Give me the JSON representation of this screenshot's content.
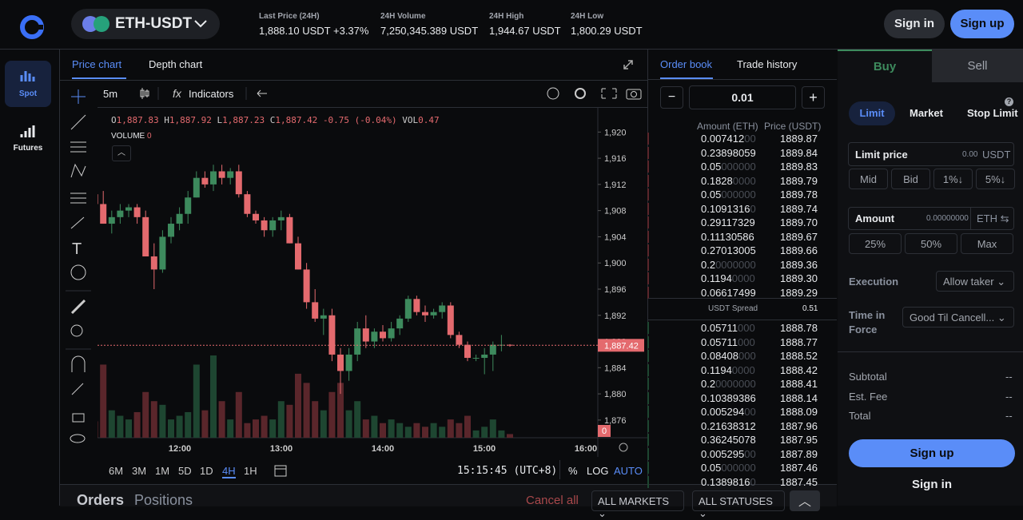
{
  "header": {
    "pair": "ETH-USDT",
    "stats": [
      {
        "label": "Last Price (24H)",
        "value": "1,888.10 USDT",
        "change": "+3.37%"
      },
      {
        "label": "24H Volume",
        "value": "7,250,345.389 USDT"
      },
      {
        "label": "24H High",
        "value": "1,944.67 USDT"
      },
      {
        "label": "24H Low",
        "value": "1,800.29 USDT"
      }
    ],
    "sign_in": "Sign in",
    "sign_up": "Sign up"
  },
  "sidebar": [
    "Spot",
    "Futures"
  ],
  "chart_tabs": [
    "Price chart",
    "Depth chart"
  ],
  "toolbar": {
    "interval": "5m",
    "indicators": "Indicators"
  },
  "ohlc": {
    "items": [
      {
        "k": "O",
        "v": "1,887.83"
      },
      {
        "k": "H",
        "v": "1,887.92"
      },
      {
        "k": "L",
        "v": "1,887.23"
      },
      {
        "k": "C",
        "v": "1,887.42"
      }
    ],
    "change": "-0.75 (-0.04%)",
    "vol_label": "VOL",
    "vol": "0.47"
  },
  "volume": {
    "label": "VOLUME",
    "value": "0"
  },
  "price_chart": {
    "type": "candlestick",
    "up_color": "#3d8a5d",
    "down_color": "#e46a6e",
    "up_volume_color": "#1e4631",
    "down_volume_color": "#5a262b",
    "ylim": [
      1873.3,
      1923.7
    ],
    "yticks": [
      {
        "value": 1920,
        "label": "1,920"
      },
      {
        "value": 1916,
        "label": "1,916"
      },
      {
        "value": 1912,
        "label": "1,912"
      },
      {
        "value": 1908,
        "label": "1,908"
      },
      {
        "value": 1904,
        "label": "1,904"
      },
      {
        "value": 1900,
        "label": "1,900"
      },
      {
        "value": 1896,
        "label": "1,896"
      },
      {
        "value": 1892,
        "label": "1,892"
      },
      {
        "value": 1888,
        "label": "1,888"
      },
      {
        "value": 1884,
        "label": "1,884"
      },
      {
        "value": 1880,
        "label": "1,880"
      },
      {
        "value": 1876,
        "label": "1,876"
      }
    ],
    "last_price": {
      "value": 1887.42,
      "label": "1,887.42"
    },
    "volume_axis_label": "0",
    "xticks": [
      "12:00",
      "13:00",
      "14:00",
      "15:00",
      "16:00"
    ],
    "candles": [
      {
        "open": 1918,
        "high": 1919,
        "low": 1910,
        "close": 1910,
        "volume": 30
      },
      {
        "open": 1910,
        "high": 1913,
        "low": 1909,
        "close": 1912,
        "volume": 8
      },
      {
        "open": 1912,
        "high": 1914,
        "low": 1910,
        "close": 1911,
        "volume": 10
      },
      {
        "open": 1911,
        "high": 1913,
        "low": 1909.5,
        "close": 1910.5,
        "volume": 12
      },
      {
        "open": 1910.5,
        "high": 1912,
        "low": 1908,
        "close": 1909,
        "volume": 9
      },
      {
        "open": 1909,
        "high": 1911,
        "low": 1906,
        "close": 1906,
        "volume": 40
      },
      {
        "open": 1906,
        "high": 1908,
        "low": 1904.5,
        "close": 1907,
        "volume": 15
      },
      {
        "open": 1907,
        "high": 1909,
        "low": 1906,
        "close": 1908,
        "volume": 12
      },
      {
        "open": 1908,
        "high": 1909,
        "low": 1907,
        "close": 1908.5,
        "volume": 10
      },
      {
        "open": 1908.5,
        "high": 1909,
        "low": 1906,
        "close": 1907,
        "volume": 14
      },
      {
        "open": 1907,
        "high": 1908,
        "low": 1901,
        "close": 1901,
        "volume": 25
      },
      {
        "open": 1901,
        "high": 1903,
        "low": 1896,
        "close": 1899,
        "volume": 20
      },
      {
        "open": 1899,
        "high": 1905,
        "low": 1898.5,
        "close": 1904,
        "volume": 18
      },
      {
        "open": 1904,
        "high": 1907,
        "low": 1903,
        "close": 1906,
        "volume": 10
      },
      {
        "open": 1906,
        "high": 1908.5,
        "low": 1905,
        "close": 1907.5,
        "volume": 12
      },
      {
        "open": 1907.5,
        "high": 1911,
        "low": 1906,
        "close": 1910,
        "volume": 14
      },
      {
        "open": 1910,
        "high": 1914,
        "low": 1910,
        "close": 1913,
        "volume": 40
      },
      {
        "open": 1913,
        "high": 1914,
        "low": 1911.5,
        "close": 1912,
        "volume": 15
      },
      {
        "open": 1912,
        "high": 1915,
        "low": 1911,
        "close": 1914,
        "volume": 45
      },
      {
        "open": 1914,
        "high": 1915,
        "low": 1912,
        "close": 1913,
        "volume": 20
      },
      {
        "open": 1913,
        "high": 1914.5,
        "low": 1912,
        "close": 1914,
        "volume": 10
      },
      {
        "open": 1914,
        "high": 1915,
        "low": 1910,
        "close": 1910.5,
        "volume": 25
      },
      {
        "open": 1910.5,
        "high": 1911,
        "low": 1907,
        "close": 1907.5,
        "volume": 8
      },
      {
        "open": 1907.5,
        "high": 1908,
        "low": 1906,
        "close": 1906.5,
        "volume": 10
      },
      {
        "open": 1906.5,
        "high": 1907,
        "low": 1904,
        "close": 1905,
        "volume": 12
      },
      {
        "open": 1905,
        "high": 1907,
        "low": 1904,
        "close": 1906.5,
        "volume": 10
      },
      {
        "open": 1906.5,
        "high": 1908,
        "low": 1905,
        "close": 1907,
        "volume": 20
      },
      {
        "open": 1907,
        "high": 1907.5,
        "low": 1903,
        "close": 1903,
        "volume": 18
      },
      {
        "open": 1903,
        "high": 1904,
        "low": 1899,
        "close": 1899,
        "volume": 35
      },
      {
        "open": 1899,
        "high": 1900,
        "low": 1893,
        "close": 1894,
        "volume": 30
      },
      {
        "open": 1894,
        "high": 1896,
        "low": 1891,
        "close": 1891.5,
        "volume": 20
      },
      {
        "open": 1891.5,
        "high": 1893,
        "low": 1889,
        "close": 1892,
        "volume": 15
      },
      {
        "open": 1892,
        "high": 1893,
        "low": 1885,
        "close": 1886,
        "volume": 25
      },
      {
        "open": 1886,
        "high": 1887,
        "low": 1880,
        "close": 1883.5,
        "volume": 30
      },
      {
        "open": 1883.5,
        "high": 1887,
        "low": 1882,
        "close": 1886,
        "volume": 15
      },
      {
        "open": 1886,
        "high": 1891,
        "low": 1885,
        "close": 1890,
        "volume": 20
      },
      {
        "open": 1890,
        "high": 1892,
        "low": 1887,
        "close": 1888,
        "volume": 10
      },
      {
        "open": 1888,
        "high": 1890,
        "low": 1887,
        "close": 1889.5,
        "volume": 12
      },
      {
        "open": 1889.5,
        "high": 1890.5,
        "low": 1888,
        "close": 1888.5,
        "volume": 8
      },
      {
        "open": 1888.5,
        "high": 1891,
        "low": 1888,
        "close": 1890,
        "volume": 10
      },
      {
        "open": 1890,
        "high": 1892,
        "low": 1889,
        "close": 1891.5,
        "volume": 8
      },
      {
        "open": 1891.5,
        "high": 1895,
        "low": 1891,
        "close": 1894.5,
        "volume": 6
      },
      {
        "open": 1894.5,
        "high": 1895,
        "low": 1892,
        "close": 1892.5,
        "volume": 8
      },
      {
        "open": 1892.5,
        "high": 1893.5,
        "low": 1891,
        "close": 1892,
        "volume": 6
      },
      {
        "open": 1892,
        "high": 1893,
        "low": 1891.5,
        "close": 1892.5,
        "volume": 8
      },
      {
        "open": 1892.5,
        "high": 1894,
        "low": 1891.5,
        "close": 1893.5,
        "volume": 6
      },
      {
        "open": 1893.5,
        "high": 1894,
        "low": 1888.5,
        "close": 1889,
        "volume": 10
      },
      {
        "open": 1889,
        "high": 1889.5,
        "low": 1887,
        "close": 1887.5,
        "volume": 8
      },
      {
        "open": 1887.5,
        "high": 1888,
        "low": 1885,
        "close": 1885.5,
        "volume": 12
      },
      {
        "open": 1885.5,
        "high": 1886,
        "low": 1885,
        "close": 1885.5,
        "volume": 4
      },
      {
        "open": 1885.5,
        "high": 1887,
        "low": 1883,
        "close": 1886,
        "volume": 6
      },
      {
        "open": 1886,
        "high": 1888,
        "low": 1883.5,
        "close": 1887.5,
        "volume": 10
      },
      {
        "open": 1887.5,
        "high": 1889,
        "low": 1886.5,
        "close": 1887.5,
        "volume": 4
      },
      {
        "open": 1887.5,
        "high": 1887.6,
        "low": 1887.2,
        "close": 1887.42,
        "volume": 2
      }
    ]
  },
  "chart_footer": {
    "ranges": [
      "6M",
      "3M",
      "1M",
      "5D",
      "1D",
      "4H",
      "1H"
    ],
    "time": "15:15:45 (UTC+8)",
    "percent": "%",
    "log": "LOG",
    "auto": "AUTO"
  },
  "order_book": {
    "tabs": [
      "Order book",
      "Trade history"
    ],
    "step": "0.01",
    "amount_header": "Amount (ETH)",
    "price_header": "Price (USDT)",
    "asks": [
      {
        "amount": "0.007412",
        "pad": "00",
        "price": "1889.87"
      },
      {
        "amount": "0.23898059",
        "pad": "",
        "price": "1889.84"
      },
      {
        "amount": "0.05",
        "pad": "000000",
        "price": "1889.83"
      },
      {
        "amount": "0.1828",
        "pad": "0000",
        "price": "1889.79"
      },
      {
        "amount": "0.05",
        "pad": "000000",
        "price": "1889.78"
      },
      {
        "amount": "0.1091316",
        "pad": "0",
        "price": "1889.74"
      },
      {
        "amount": "0.29117329",
        "pad": "",
        "price": "1889.70"
      },
      {
        "amount": "0.11130586",
        "pad": "",
        "price": "1889.67"
      },
      {
        "amount": "0.27013005",
        "pad": "",
        "price": "1889.66"
      },
      {
        "amount": "0.2",
        "pad": "0000000",
        "price": "1889.36"
      },
      {
        "amount": "0.1194",
        "pad": "0000",
        "price": "1889.30"
      },
      {
        "amount": "0.06617499",
        "pad": "",
        "price": "1889.29"
      }
    ],
    "spread_label": "USDT Spread",
    "spread": "0.51",
    "bids": [
      {
        "amount": "0.05711",
        "pad": "000",
        "price": "1888.78"
      },
      {
        "amount": "0.05711",
        "pad": "000",
        "price": "1888.77"
      },
      {
        "amount": "0.08408",
        "pad": "000",
        "price": "1888.52"
      },
      {
        "amount": "0.1194",
        "pad": "0000",
        "price": "1888.42"
      },
      {
        "amount": "0.2",
        "pad": "0000000",
        "price": "1888.41"
      },
      {
        "amount": "0.10389386",
        "pad": "",
        "price": "1888.14"
      },
      {
        "amount": "0.005294",
        "pad": "00",
        "price": "1888.09"
      },
      {
        "amount": "0.21638312",
        "pad": "",
        "price": "1887.96"
      },
      {
        "amount": "0.36245078",
        "pad": "",
        "price": "1887.95"
      },
      {
        "amount": "0.005295",
        "pad": "00",
        "price": "1887.89"
      },
      {
        "amount": "0.05",
        "pad": "000000",
        "price": "1887.46"
      },
      {
        "amount": "0.1389816",
        "pad": "0",
        "price": "1887.45"
      }
    ]
  },
  "trade": {
    "tabs": [
      "Buy",
      "Sell"
    ],
    "order_types": [
      "Limit",
      "Market",
      "Stop Limit"
    ],
    "help": "?",
    "limit_price": {
      "label": "Limit price",
      "placeholder": "0.00",
      "unit": "USDT"
    },
    "price_buttons": [
      "Mid",
      "Bid",
      "1%↓",
      "5%↓"
    ],
    "amount": {
      "label": "Amount",
      "placeholder": "0.00000000",
      "unit": "ETH"
    },
    "amount_buttons": [
      "25%",
      "50%",
      "Max"
    ],
    "execution": {
      "label": "Execution",
      "value": "Allow taker"
    },
    "time_in_force": {
      "label": "Time in Force",
      "value": "Good Til Cancell..."
    },
    "summary": [
      {
        "label": "Subtotal",
        "value": "--"
      },
      {
        "label": "Est. Fee",
        "value": "--"
      },
      {
        "label": "Total",
        "value": "--"
      }
    ],
    "sign_up": "Sign up",
    "sign_in": "Sign in"
  },
  "orders_bar": {
    "tabs": [
      "Orders",
      "Positions"
    ],
    "cancel_all": "Cancel all",
    "markets": "ALL MARKETS",
    "statuses": "ALL STATUSES"
  }
}
